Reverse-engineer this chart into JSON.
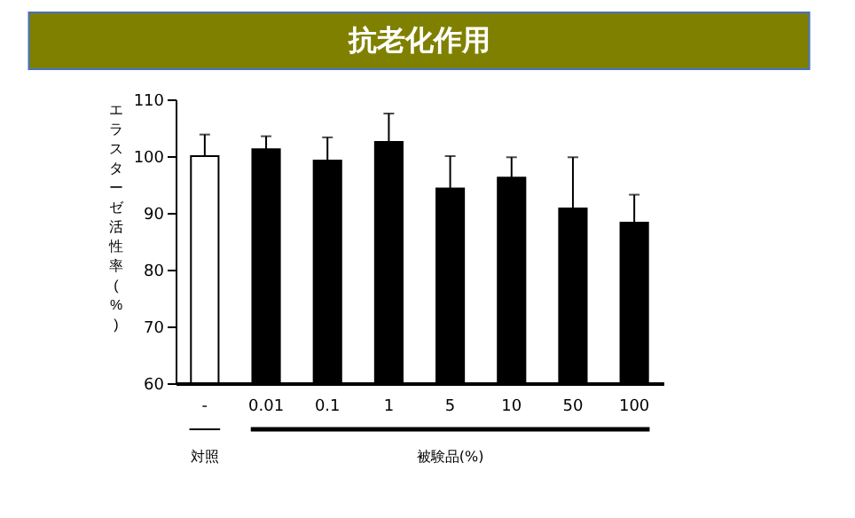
{
  "chart_data": {
    "type": "bar",
    "title": "抗老化作用",
    "ylabel": "エラスターゼ活性率(%)",
    "categories": [
      "-",
      "0.01",
      "0.1",
      "1",
      "5",
      "10",
      "50",
      "100"
    ],
    "values": [
      100,
      101.2,
      99.2,
      102.5,
      94.3,
      96.2,
      90.8,
      88.3
    ],
    "errors": [
      [
        100,
        103.8
      ],
      [
        101.2,
        103.5
      ],
      [
        99.2,
        103.3
      ],
      [
        102.5,
        107.5
      ],
      [
        94.3,
        100
      ],
      [
        96.2,
        99.8
      ],
      [
        90.8,
        99.8
      ],
      [
        88.3,
        93.2
      ]
    ],
    "colors": [
      "#ffffff",
      "#000000",
      "#000000",
      "#000000",
      "#000000",
      "#000000",
      "#000000",
      "#000000"
    ],
    "ylim": [
      60,
      110
    ],
    "yticks": [
      60,
      70,
      80,
      90,
      100,
      110
    ],
    "grid": false,
    "annotations": [
      "対照",
      "被験品(%)"
    ]
  }
}
